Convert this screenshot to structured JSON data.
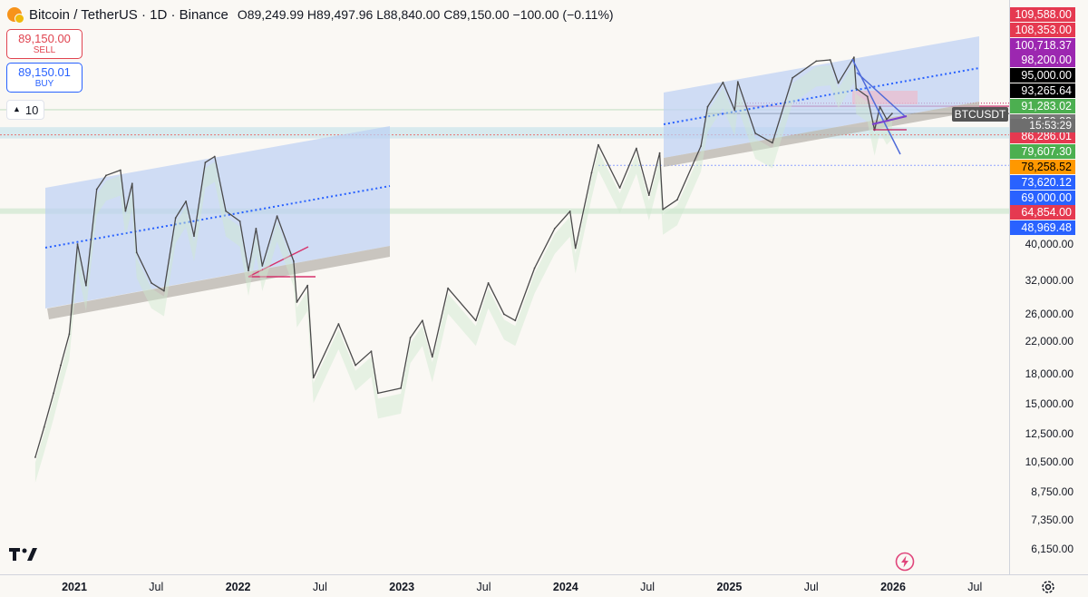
{
  "header": {
    "symbol": "Bitcoin / TetherUS · 1D · Binance",
    "open_key": "O",
    "open": "89,249.99",
    "high_key": "H",
    "high": "89,497.96",
    "low_key": "L",
    "low": "88,840.00",
    "close_key": "C",
    "close": "89,150.00",
    "change": "−100.00 (−0.11%)"
  },
  "trade": {
    "sell_price": "89,150.00",
    "sell_label": "SELL",
    "buy_price": "89,150.01",
    "buy_label": "BUY"
  },
  "indicator_toggle": {
    "value": "10"
  },
  "price_labels": [
    {
      "text": "109,588.00",
      "value": 109588,
      "color": "#e53950",
      "fg": "#ffffff"
    },
    {
      "text": "108,353.00",
      "value": 108353,
      "color": "#e53950",
      "fg": "#ffffff"
    },
    {
      "text": "100,718.37",
      "value": 100718.37,
      "color": "#9c27b0",
      "fg": "#ffffff"
    },
    {
      "text": "98,200.00",
      "value": 98200,
      "color": "#9c27b0",
      "fg": "#ffffff"
    },
    {
      "text": "95,000.00",
      "value": 95000,
      "color": "#000000",
      "fg": "#ffffff"
    },
    {
      "text": "93,265.64",
      "value": 93265.64,
      "color": "#000000",
      "fg": "#ffffff"
    },
    {
      "text": "91,283.02",
      "value": 91283.02,
      "color": "#4caf50",
      "fg": "#ffffff"
    },
    {
      "text": "89,150.00",
      "value": 89150,
      "color": "#787878",
      "fg": "#ffffff"
    },
    {
      "text": "86,286.01",
      "value": 86286.01,
      "color": "#e53950",
      "fg": "#ffffff"
    },
    {
      "text": "79,607.30",
      "value": 79607.3,
      "color": "#4caf50",
      "fg": "#ffffff"
    },
    {
      "text": "78,258.52",
      "value": 78258.52,
      "color": "#ff9800",
      "fg": "#000000"
    },
    {
      "text": "73,620.12",
      "value": 73620.12,
      "color": "#2962ff",
      "fg": "#ffffff"
    },
    {
      "text": "69,000.00",
      "value": 69000,
      "color": "#2962ff",
      "fg": "#ffffff"
    },
    {
      "text": "64,854.00",
      "value": 64854,
      "color": "#e53950",
      "fg": "#ffffff"
    },
    {
      "text": "48,969.48",
      "value": 48969.48,
      "color": "#2962ff",
      "fg": "#ffffff"
    }
  ],
  "countdown": "15:53:29",
  "symbol_tag": "BTCUSDT",
  "y_ticks": [
    {
      "text": "40,000.00",
      "value": 40000
    },
    {
      "text": "32,000.00",
      "value": 32000
    },
    {
      "text": "26,000.00",
      "value": 26000
    },
    {
      "text": "22,000.00",
      "value": 22000
    },
    {
      "text": "18,000.00",
      "value": 18000
    },
    {
      "text": "15,000.00",
      "value": 15000
    },
    {
      "text": "12,500.00",
      "value": 12500
    },
    {
      "text": "10,500.00",
      "value": 10500
    },
    {
      "text": "8,750.00",
      "value": 8750
    },
    {
      "text": "7,350.00",
      "value": 7350
    },
    {
      "text": "6,150.00",
      "value": 6150
    }
  ],
  "x_ticks": [
    {
      "text": "2021",
      "t": 2021.0,
      "year": true
    },
    {
      "text": "Jul",
      "t": 2021.5,
      "year": false
    },
    {
      "text": "2022",
      "t": 2022.0,
      "year": true
    },
    {
      "text": "Jul",
      "t": 2022.5,
      "year": false
    },
    {
      "text": "2023",
      "t": 2023.0,
      "year": true
    },
    {
      "text": "Jul",
      "t": 2023.5,
      "year": false
    },
    {
      "text": "2024",
      "t": 2024.0,
      "year": true
    },
    {
      "text": "Jul",
      "t": 2024.5,
      "year": false
    },
    {
      "text": "2025",
      "t": 2025.0,
      "year": true
    },
    {
      "text": "Jul",
      "t": 2025.5,
      "year": false
    },
    {
      "text": "2026",
      "t": 2026.0,
      "year": true
    },
    {
      "text": "Jul",
      "t": 2026.5,
      "year": false
    }
  ],
  "chart_data": {
    "type": "line",
    "log_scale": true,
    "series": [
      {
        "points": [
          [
            "2020-10-05",
            10800
          ],
          [
            "2020-10-25",
            13000
          ],
          [
            "2020-11-15",
            16000
          ],
          [
            "2020-12-01",
            19000
          ],
          [
            "2020-12-20",
            23000
          ],
          [
            "2021-01-08",
            40000
          ],
          [
            "2021-01-27",
            31000
          ],
          [
            "2021-02-20",
            56000
          ],
          [
            "2021-03-13",
            61000
          ],
          [
            "2021-04-14",
            63000
          ],
          [
            "2021-04-25",
            49000
          ],
          [
            "2021-05-10",
            58000
          ],
          [
            "2021-05-20",
            38000
          ],
          [
            "2021-06-22",
            31500
          ],
          [
            "2021-07-20",
            30000
          ],
          [
            "2021-08-15",
            47000
          ],
          [
            "2021-09-07",
            52000
          ],
          [
            "2021-09-25",
            42000
          ],
          [
            "2021-10-20",
            66000
          ],
          [
            "2021-11-10",
            68500
          ],
          [
            "2021-12-05",
            49000
          ],
          [
            "2022-01-05",
            46000
          ],
          [
            "2022-01-24",
            34000
          ],
          [
            "2022-02-10",
            44000
          ],
          [
            "2022-02-24",
            35000
          ],
          [
            "2022-03-29",
            47500
          ],
          [
            "2022-05-05",
            36000
          ],
          [
            "2022-05-12",
            28000
          ],
          [
            "2022-06-05",
            31000
          ],
          [
            "2022-06-18",
            17600
          ],
          [
            "2022-08-13",
            24500
          ],
          [
            "2022-09-20",
            19000
          ],
          [
            "2022-10-25",
            20700
          ],
          [
            "2022-11-09",
            16000
          ],
          [
            "2022-12-30",
            16500
          ],
          [
            "2023-01-20",
            22500
          ],
          [
            "2023-02-16",
            25000
          ],
          [
            "2023-03-10",
            20000
          ],
          [
            "2023-04-14",
            30500
          ],
          [
            "2023-06-15",
            25000
          ],
          [
            "2023-07-13",
            31500
          ],
          [
            "2023-08-17",
            26000
          ],
          [
            "2023-09-11",
            25000
          ],
          [
            "2023-10-24",
            34500
          ],
          [
            "2023-12-08",
            44000
          ],
          [
            "2024-01-11",
            48900
          ],
          [
            "2024-01-23",
            39000
          ],
          [
            "2024-02-28",
            62000
          ],
          [
            "2024-03-14",
            73600
          ],
          [
            "2024-05-01",
            56500
          ],
          [
            "2024-06-07",
            72000
          ],
          [
            "2024-07-05",
            54000
          ],
          [
            "2024-07-29",
            70000
          ],
          [
            "2024-08-05",
            49500
          ],
          [
            "2024-09-06",
            52500
          ],
          [
            "2024-10-29",
            73000
          ],
          [
            "2024-11-13",
            93000
          ],
          [
            "2024-12-17",
            108000
          ],
          [
            "2025-01-13",
            91000
          ],
          [
            "2025-01-20",
            108353
          ],
          [
            "2025-02-28",
            79000
          ],
          [
            "2025-04-07",
            74500
          ],
          [
            "2025-05-22",
            111000
          ],
          [
            "2025-07-14",
            123000
          ],
          [
            "2025-08-14",
            124000
          ],
          [
            "2025-09-01",
            107500
          ],
          [
            "2025-10-06",
            126000
          ],
          [
            "2025-10-11",
            104000
          ],
          [
            "2025-11-05",
            99000
          ],
          [
            "2025-11-21",
            80500
          ],
          [
            "2025-12-03",
            93000
          ],
          [
            "2025-12-18",
            86000
          ],
          [
            "2025-12-30",
            89150
          ]
        ]
      }
    ],
    "ylim": [
      5700,
      135000
    ],
    "xlim": [
      "2020-09-28",
      "2026-09-10"
    ]
  }
}
